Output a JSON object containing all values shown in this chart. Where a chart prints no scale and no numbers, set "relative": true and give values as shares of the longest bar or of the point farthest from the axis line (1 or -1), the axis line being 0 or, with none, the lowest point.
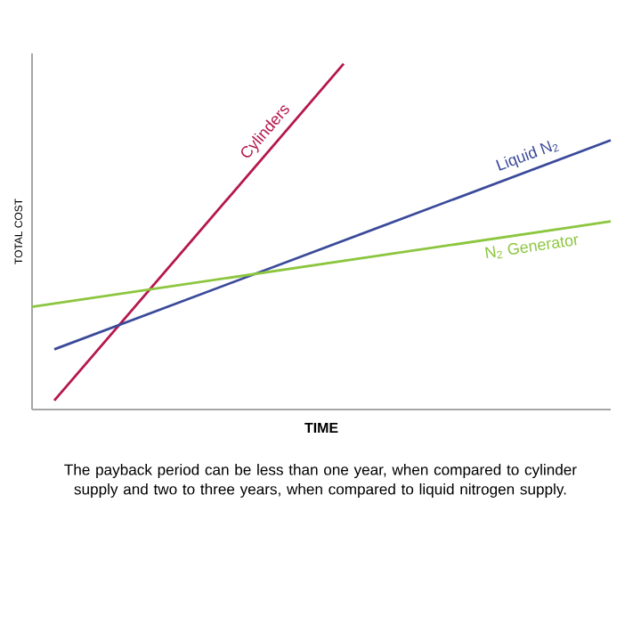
{
  "chart_data": {
    "type": "line",
    "relative": true,
    "xlabel": "TIME",
    "ylabel": "TOTAL COST",
    "categories": [
      null,
      null,
      null,
      null,
      null,
      null,
      null,
      null,
      null,
      null,
      null,
      null,
      null,
      null,
      null,
      null,
      null,
      null,
      null,
      null,
      null,
      null,
      null,
      null,
      null,
      null,
      null
    ],
    "series": [
      {
        "name": "Cylinders",
        "color": "#b5174d",
        "values": [
          null,
          0.026,
          null,
          null,
          null,
          null,
          null,
          null,
          null,
          null,
          null,
          null,
          null,
          null,
          1,
          null,
          null,
          null,
          null,
          null,
          null,
          null,
          null,
          null,
          null,
          null,
          null
        ]
      },
      {
        "name": "Liquid N$_{2}$",
        "color": "#3a4a9a",
        "values": [
          null,
          0.174,
          null,
          null,
          null,
          null,
          null,
          null,
          null,
          null,
          null,
          null,
          null,
          null,
          null,
          null,
          null,
          null,
          null,
          null,
          null,
          null,
          null,
          null,
          null,
          null,
          0.779
        ]
      },
      {
        "name": "N$_{2}$ Generator",
        "color": "#8cc63f",
        "values": [
          0.297,
          null,
          null,
          null,
          null,
          null,
          null,
          null,
          null,
          null,
          null,
          null,
          null,
          null,
          null,
          null,
          null,
          null,
          null,
          null,
          null,
          null,
          null,
          null,
          null,
          null,
          0.544
        ]
      }
    ],
    "annotations": [
      "The payback period can be less than one year, when compared to cylinder supply and two to three years, when compared to liquid nitrogen supply."
    ]
  }
}
